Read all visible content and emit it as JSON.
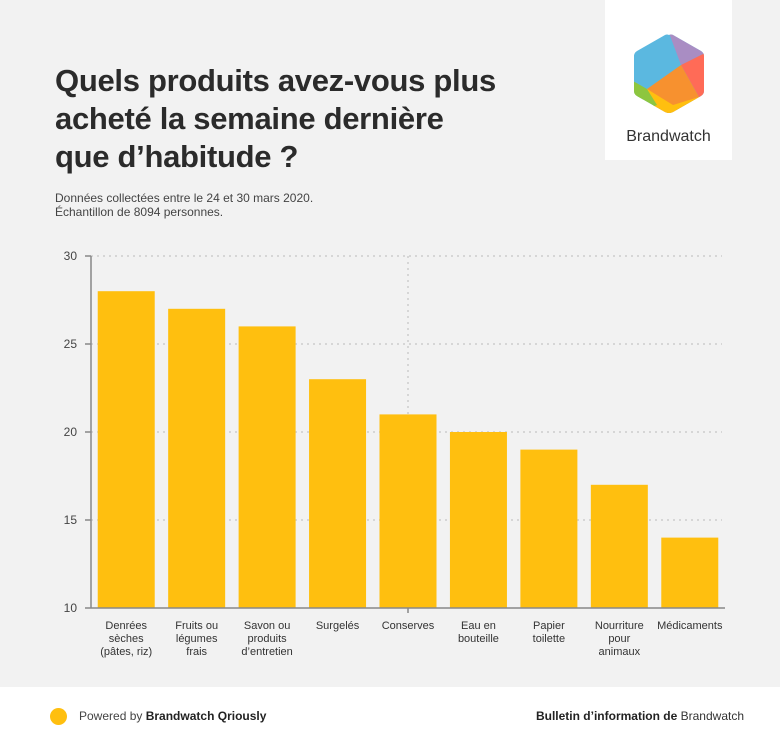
{
  "header": {
    "title_lines": [
      "Quels produits avez-vous plus",
      "acheté la semaine dernière",
      "que d’habitude ?"
    ],
    "subtitle_lines": [
      "Données collectées entre le 24 et 30 mars 2020.",
      "Échantillon de 8094 personnes."
    ]
  },
  "logo": {
    "text": "Brandwatch",
    "icon": "brandwatch-hexagon-logo",
    "colors": [
      "#5bb8e0",
      "#a98dc3",
      "#ff6b57",
      "#f7912f",
      "#ffbf0f",
      "#8dc63f"
    ]
  },
  "footer": {
    "powered_prefix": "Powered by",
    "powered_brand": "Brandwatch Qriously",
    "bulletin_bold": "Bulletin d’information de",
    "bulletin_brand": "Brandwatch",
    "dot_color": "#ffbf0f"
  },
  "colors": {
    "bar": "#ffbf0f",
    "background": "#f2f2f2",
    "axis": "#888888",
    "grid": "#d6d6d6"
  },
  "chart_data": {
    "type": "bar",
    "title": "Quels produits avez-vous plus acheté la semaine dernière que d’habitude ?",
    "xlabel": "",
    "ylabel": "",
    "ylim": [
      10,
      30
    ],
    "yticks": [
      10,
      15,
      20,
      25,
      30
    ],
    "grid": true,
    "categories": [
      [
        "Denrées",
        "sèches",
        "(pâtes, riz)"
      ],
      [
        "Fruits ou",
        "légumes",
        "frais"
      ],
      [
        "Savon ou",
        "produits",
        "d’entretien"
      ],
      [
        "Surgelés"
      ],
      [
        "Conserves"
      ],
      [
        "Eau en",
        "bouteille"
      ],
      [
        "Papier",
        "toilette"
      ],
      [
        "Nourriture",
        "pour",
        "animaux"
      ],
      [
        "Médicaments"
      ]
    ],
    "values": [
      28,
      27,
      26,
      23,
      21,
      20,
      19,
      17,
      14
    ]
  }
}
